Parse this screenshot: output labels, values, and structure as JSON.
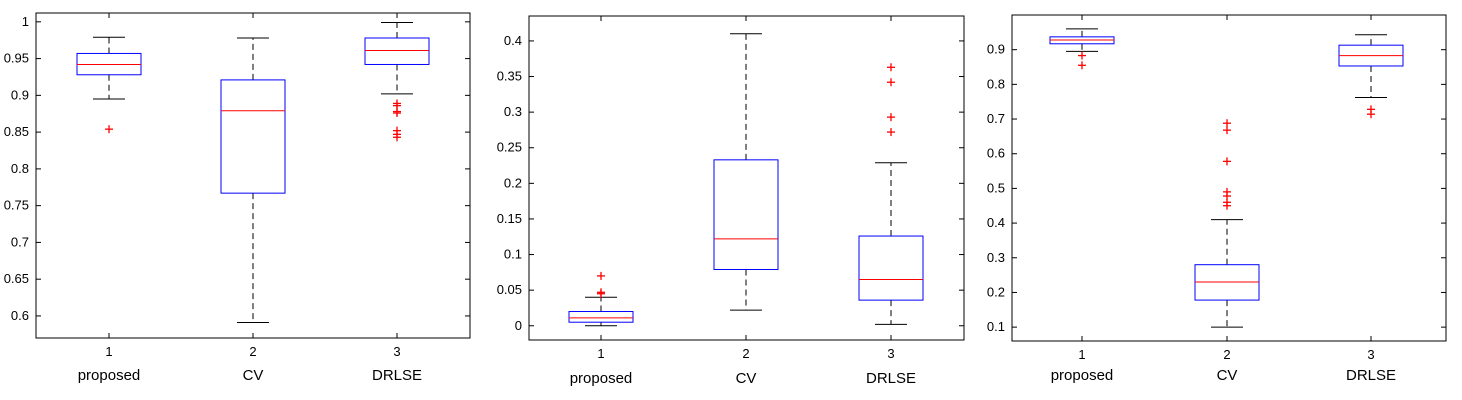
{
  "colors": {
    "box": "#0000ff",
    "median": "#ff0000",
    "whisker": "#000000",
    "outlier": "#ff0000",
    "axes": "#000000"
  },
  "chart_data": [
    {
      "type": "box",
      "xticks": [
        "1",
        "2",
        "3"
      ],
      "group_labels": [
        "proposed",
        "CV",
        "DRLSE"
      ],
      "ylim": [
        0.57,
        1.012
      ],
      "yticks": [
        0.6,
        0.65,
        0.7,
        0.75,
        0.8,
        0.85,
        0.9,
        0.95,
        1
      ],
      "ytick_labels": [
        "0.6",
        "0.65",
        "0.7",
        "0.75",
        "0.8",
        "0.85",
        "0.9",
        "0.95",
        "1"
      ],
      "grid": false,
      "boxes": [
        {
          "q1": 0.928,
          "median": 0.942,
          "q3": 0.957,
          "whisker_low": 0.895,
          "whisker_high": 0.979,
          "outliers": [
            0.854
          ]
        },
        {
          "q1": 0.767,
          "median": 0.879,
          "q3": 0.921,
          "whisker_low": 0.591,
          "whisker_high": 0.978,
          "outliers": []
        },
        {
          "q1": 0.942,
          "median": 0.961,
          "q3": 0.978,
          "whisker_low": 0.902,
          "whisker_high": 0.999,
          "outliers": [
            0.889,
            0.886,
            0.878,
            0.876,
            0.852,
            0.847,
            0.843
          ]
        }
      ]
    },
    {
      "type": "box",
      "xticks": [
        "1",
        "2",
        "3"
      ],
      "group_labels": [
        "proposed",
        "CV",
        "DRLSE"
      ],
      "ylim": [
        -0.02,
        0.435
      ],
      "yticks": [
        0,
        0.05,
        0.1,
        0.15,
        0.2,
        0.25,
        0.3,
        0.35,
        0.4
      ],
      "ytick_labels": [
        "0",
        "0.05",
        "0.1",
        "0.15",
        "0.2",
        "0.25",
        "0.3",
        "0.35",
        "0.4"
      ],
      "grid": false,
      "boxes": [
        {
          "q1": 0.005,
          "median": 0.011,
          "q3": 0.02,
          "whisker_low": 0.0,
          "whisker_high": 0.04,
          "outliers": [
            0.07,
            0.047,
            0.045
          ]
        },
        {
          "q1": 0.079,
          "median": 0.122,
          "q3": 0.233,
          "whisker_low": 0.022,
          "whisker_high": 0.41,
          "outliers": []
        },
        {
          "q1": 0.036,
          "median": 0.065,
          "q3": 0.126,
          "whisker_low": 0.002,
          "whisker_high": 0.229,
          "outliers": [
            0.363,
            0.342,
            0.293,
            0.272
          ]
        }
      ]
    },
    {
      "type": "box",
      "xticks": [
        "1",
        "2",
        "3"
      ],
      "group_labels": [
        "proposed",
        "CV",
        "DRLSE"
      ],
      "ylim": [
        0.06,
        1.0
      ],
      "yticks": [
        0.1,
        0.2,
        0.3,
        0.4,
        0.5,
        0.6,
        0.7,
        0.8,
        0.9
      ],
      "ytick_labels": [
        "0.1",
        "0.2",
        "0.3",
        "0.4",
        "0.5",
        "0.6",
        "0.7",
        "0.8",
        "0.9"
      ],
      "grid": false,
      "boxes": [
        {
          "q1": 0.917,
          "median": 0.928,
          "q3": 0.937,
          "whisker_low": 0.895,
          "whisker_high": 0.96,
          "outliers": [
            0.883,
            0.855
          ]
        },
        {
          "q1": 0.178,
          "median": 0.23,
          "q3": 0.28,
          "whisker_low": 0.1,
          "whisker_high": 0.41,
          "outliers": [
            0.688,
            0.668,
            0.578,
            0.49,
            0.478,
            0.46,
            0.45
          ]
        },
        {
          "q1": 0.853,
          "median": 0.883,
          "q3": 0.913,
          "whisker_low": 0.762,
          "whisker_high": 0.943,
          "outliers": [
            0.728,
            0.714
          ]
        }
      ]
    }
  ]
}
